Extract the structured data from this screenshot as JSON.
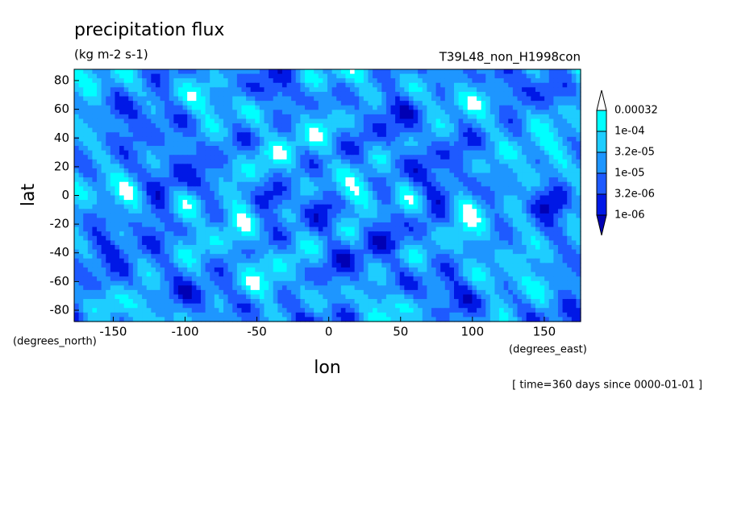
{
  "chart_data": {
    "type": "contour",
    "title": "precipitation flux",
    "subtitle": "(kg m-2 s-1)",
    "annotation": "T39L48_non_H1998con",
    "xlabel": "lon",
    "ylabel": "lat",
    "xunits": "(degrees_east)",
    "yunits": "(degrees_north)",
    "time": "[ time=360 days since 0000-01-01 ]",
    "xlim": [
      -177.1875,
      175.3125
    ],
    "ylim": [
      -87.86,
      87.86
    ],
    "xticks": [
      -150,
      -100,
      -50,
      0,
      50,
      100,
      150
    ],
    "yticks": [
      -80,
      -60,
      -40,
      -20,
      0,
      20,
      40,
      60,
      80
    ],
    "levels": [
      {
        "value": 1e-06,
        "label": "1e-06"
      },
      {
        "value": 3.2e-06,
        "label": "3.2e-06"
      },
      {
        "value": 1e-05,
        "label": "1e-05"
      },
      {
        "value": 3.2e-05,
        "label": "3.2e-05"
      },
      {
        "value": 0.0001,
        "label": "1e-04"
      },
      0.00032
    ],
    "colors": [
      "#0000b4",
      "#0018e6",
      "#1e5aff",
      "#1e96ff",
      "#1ecdff",
      "#00ffff",
      "#ffffff"
    ]
  }
}
